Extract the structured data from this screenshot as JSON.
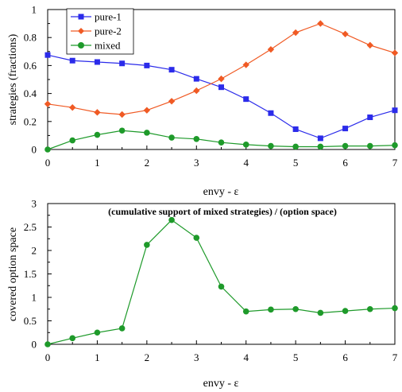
{
  "chart_data": [
    {
      "type": "line",
      "title": "",
      "xlabel": "envy - ε",
      "ylabel": "strategies (fractions)",
      "xlim": [
        0,
        7
      ],
      "ylim": [
        0,
        1
      ],
      "x_ticks": [
        "0",
        "1",
        "2",
        "3",
        "4",
        "5",
        "6",
        "7"
      ],
      "y_ticks": [
        "0",
        "0.2",
        "0.4",
        "0.6",
        "0.8",
        "1"
      ],
      "grid": false,
      "legend_position": "top-left",
      "x": [
        0,
        0.5,
        1,
        1.5,
        2,
        2.5,
        3,
        3.5,
        4,
        4.5,
        5,
        5.5,
        6,
        6.5,
        7
      ],
      "series": [
        {
          "name": "pure-1",
          "color": "#2b2bea",
          "marker": "square",
          "values": [
            0.675,
            0.635,
            0.625,
            0.615,
            0.6,
            0.57,
            0.505,
            0.445,
            0.36,
            0.26,
            0.145,
            0.08,
            0.15,
            0.23,
            0.28
          ]
        },
        {
          "name": "pure-2",
          "color": "#f05a24",
          "marker": "diamond",
          "values": [
            0.325,
            0.3,
            0.265,
            0.25,
            0.28,
            0.345,
            0.42,
            0.505,
            0.605,
            0.715,
            0.835,
            0.9,
            0.825,
            0.745,
            0.69
          ]
        },
        {
          "name": "mixed",
          "color": "#1e9a2a",
          "marker": "circle",
          "values": [
            0.0,
            0.065,
            0.105,
            0.135,
            0.12,
            0.085,
            0.075,
            0.05,
            0.035,
            0.025,
            0.02,
            0.02,
            0.025,
            0.025,
            0.03
          ]
        }
      ]
    },
    {
      "type": "line",
      "title": "(cumulative support of mixed strategies) / (option space)",
      "xlabel": "envy - ε",
      "ylabel": "covered option space",
      "xlim": [
        0,
        7
      ],
      "ylim": [
        0,
        3
      ],
      "x_ticks": [
        "0",
        "1",
        "2",
        "3",
        "4",
        "5",
        "6",
        "7"
      ],
      "y_ticks": [
        "0",
        "0.5",
        "1",
        "1.5",
        "2",
        "2.5",
        "3"
      ],
      "grid": false,
      "x": [
        0,
        0.5,
        1,
        1.5,
        2,
        2.5,
        3,
        3.5,
        4,
        4.5,
        5,
        5.5,
        6,
        6.5,
        7
      ],
      "series": [
        {
          "color": "#1e9a2a",
          "marker": "circle",
          "values": [
            0.0,
            0.13,
            0.25,
            0.34,
            2.12,
            2.65,
            2.27,
            1.23,
            0.7,
            0.74,
            0.75,
            0.67,
            0.71,
            0.75,
            0.77
          ]
        }
      ]
    }
  ]
}
